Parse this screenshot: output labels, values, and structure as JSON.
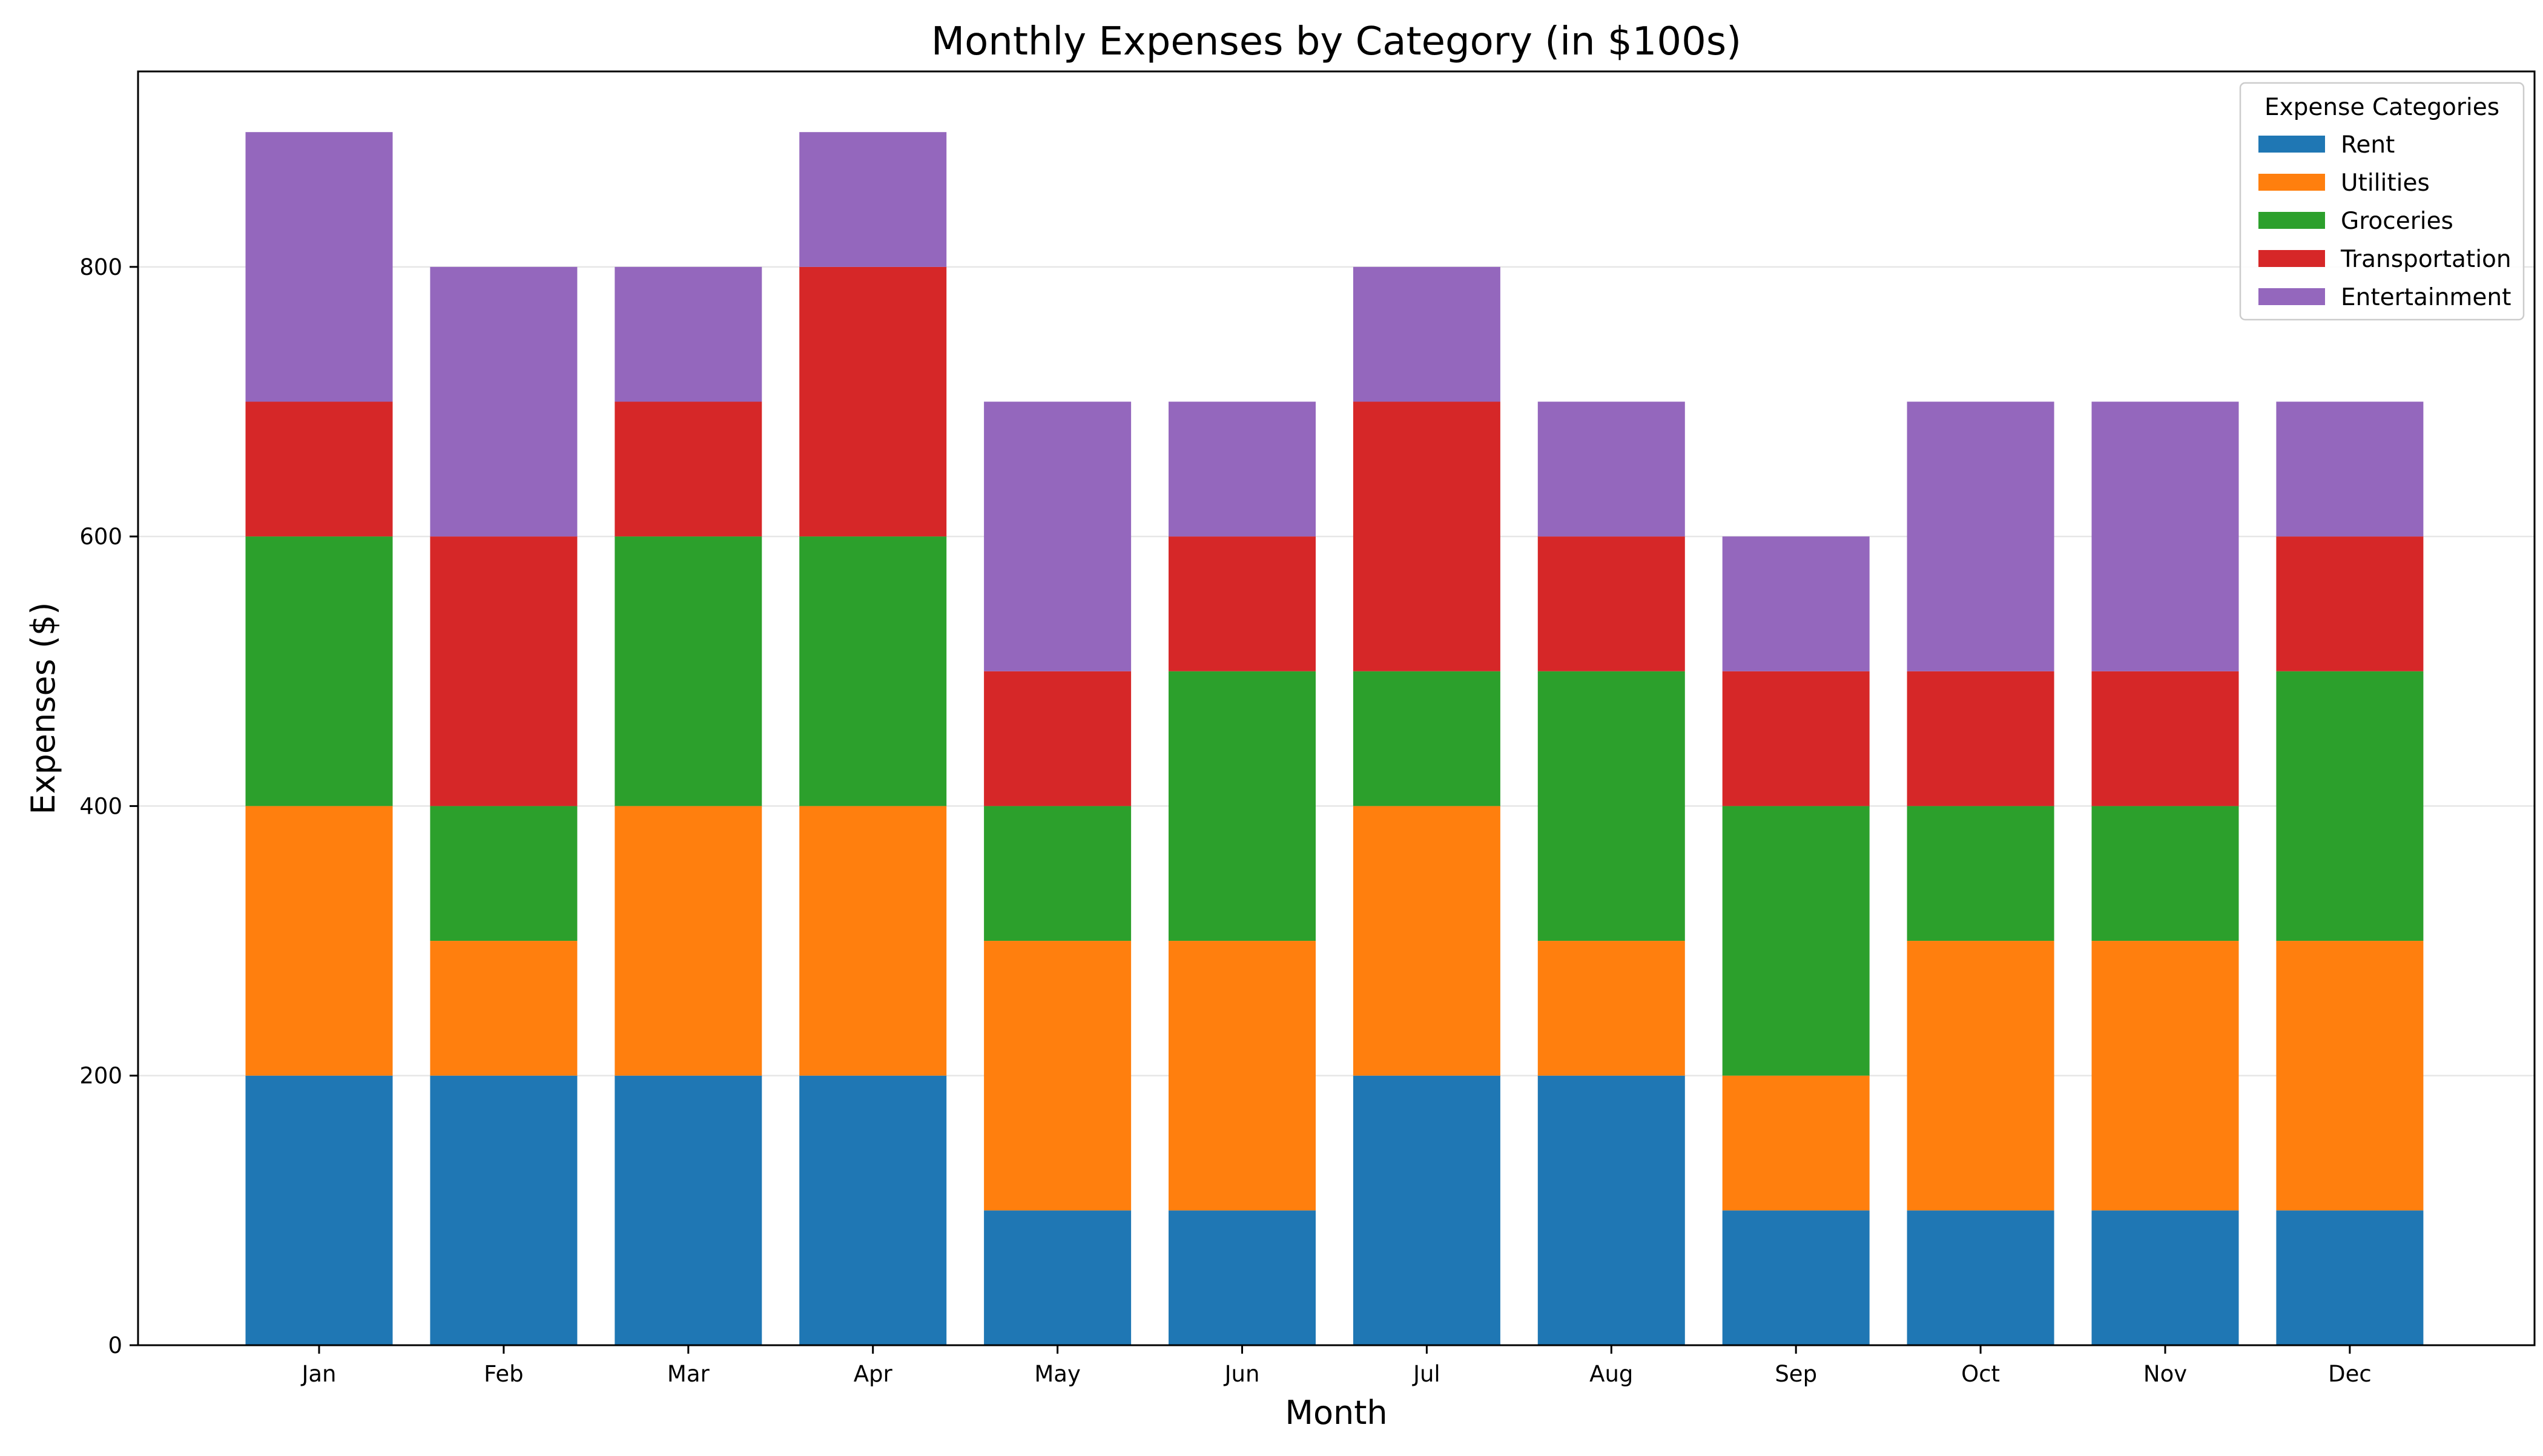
{
  "chart_data": {
    "type": "bar",
    "stacked": true,
    "title": "Monthly Expenses by Category (in $100s)",
    "xlabel": "Month",
    "ylabel": "Expenses ($)",
    "categories": [
      "Jan",
      "Feb",
      "Mar",
      "Apr",
      "May",
      "Jun",
      "Jul",
      "Aug",
      "Sep",
      "Oct",
      "Nov",
      "Dec"
    ],
    "ylim": [
      0,
      945
    ],
    "yticks": [
      "0",
      "200",
      "400",
      "600",
      "800"
    ],
    "grid": "y",
    "legend": {
      "title": "Expense Categories",
      "placement": "top-right"
    },
    "series": [
      {
        "name": "Rent",
        "color": "#1f77b4",
        "values": [
          200,
          200,
          200,
          200,
          100,
          100,
          200,
          200,
          100,
          100,
          100,
          100
        ]
      },
      {
        "name": "Utilities",
        "color": "#ff7f0e",
        "values": [
          200,
          100,
          200,
          200,
          200,
          200,
          200,
          100,
          100,
          200,
          200,
          200
        ]
      },
      {
        "name": "Groceries",
        "color": "#2ca02c",
        "values": [
          200,
          100,
          200,
          200,
          100,
          200,
          100,
          200,
          200,
          100,
          100,
          200
        ]
      },
      {
        "name": "Transportation",
        "color": "#d62728",
        "values": [
          100,
          200,
          100,
          200,
          100,
          100,
          200,
          100,
          100,
          100,
          100,
          100
        ]
      },
      {
        "name": "Entertainment",
        "color": "#9467bd",
        "values": [
          200,
          200,
          100,
          100,
          200,
          100,
          100,
          100,
          100,
          200,
          200,
          100
        ]
      }
    ]
  }
}
